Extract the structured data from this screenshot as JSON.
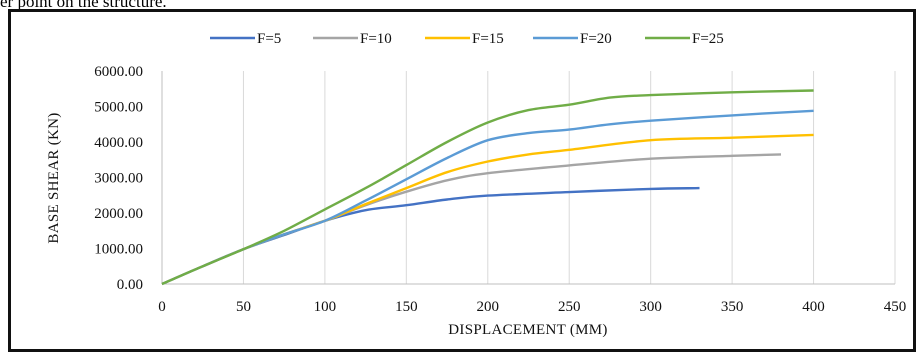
{
  "caption_fragment": "er point on the structure.",
  "chart_data": {
    "type": "line",
    "title": "",
    "xlabel": "DISPLACEMENT  (MM)",
    "ylabel": "BASE SHEAR  (KN)",
    "xlim": [
      0,
      450
    ],
    "ylim": [
      0,
      6000
    ],
    "x_ticks": [
      "0",
      "50",
      "100",
      "150",
      "200",
      "250",
      "300",
      "350",
      "400",
      "450"
    ],
    "y_ticks": [
      "0.00",
      "1000.00",
      "2000.00",
      "3000.00",
      "4000.00",
      "5000.00",
      "6000.00"
    ],
    "grid": "vertical",
    "legend_position": "top",
    "series": [
      {
        "name": "F=5",
        "color": "#4472C4",
        "points": [
          [
            0,
            0
          ],
          [
            25,
            500
          ],
          [
            50,
            980
          ],
          [
            75,
            1380
          ],
          [
            100,
            1780
          ],
          [
            125,
            2080
          ],
          [
            150,
            2220
          ],
          [
            175,
            2380
          ],
          [
            200,
            2490
          ],
          [
            250,
            2590
          ],
          [
            300,
            2680
          ],
          [
            330,
            2700
          ]
        ]
      },
      {
        "name": "F=10",
        "color": "#A5A5A5",
        "points": [
          [
            0,
            0
          ],
          [
            25,
            500
          ],
          [
            50,
            980
          ],
          [
            75,
            1400
          ],
          [
            100,
            1780
          ],
          [
            125,
            2220
          ],
          [
            150,
            2600
          ],
          [
            175,
            2920
          ],
          [
            200,
            3120
          ],
          [
            250,
            3340
          ],
          [
            300,
            3530
          ],
          [
            350,
            3610
          ],
          [
            380,
            3650
          ]
        ]
      },
      {
        "name": "F=15",
        "color": "#FFC000",
        "points": [
          [
            0,
            0
          ],
          [
            25,
            500
          ],
          [
            50,
            980
          ],
          [
            75,
            1400
          ],
          [
            100,
            1780
          ],
          [
            125,
            2250
          ],
          [
            150,
            2700
          ],
          [
            175,
            3150
          ],
          [
            200,
            3450
          ],
          [
            225,
            3650
          ],
          [
            250,
            3780
          ],
          [
            300,
            4050
          ],
          [
            350,
            4120
          ],
          [
            400,
            4200
          ]
        ]
      },
      {
        "name": "F=20",
        "color": "#5B9BD5",
        "points": [
          [
            0,
            0
          ],
          [
            25,
            500
          ],
          [
            50,
            980
          ],
          [
            75,
            1400
          ],
          [
            100,
            1780
          ],
          [
            125,
            2350
          ],
          [
            150,
            2950
          ],
          [
            175,
            3550
          ],
          [
            200,
            4050
          ],
          [
            225,
            4250
          ],
          [
            250,
            4350
          ],
          [
            275,
            4500
          ],
          [
            300,
            4600
          ],
          [
            350,
            4750
          ],
          [
            400,
            4880
          ]
        ]
      },
      {
        "name": "F=25",
        "color": "#70AD47",
        "points": [
          [
            0,
            0
          ],
          [
            25,
            500
          ],
          [
            50,
            980
          ],
          [
            75,
            1500
          ],
          [
            100,
            2100
          ],
          [
            125,
            2700
          ],
          [
            150,
            3350
          ],
          [
            175,
            4000
          ],
          [
            200,
            4550
          ],
          [
            225,
            4900
          ],
          [
            250,
            5050
          ],
          [
            275,
            5250
          ],
          [
            300,
            5320
          ],
          [
            350,
            5400
          ],
          [
            400,
            5450
          ]
        ]
      }
    ]
  }
}
